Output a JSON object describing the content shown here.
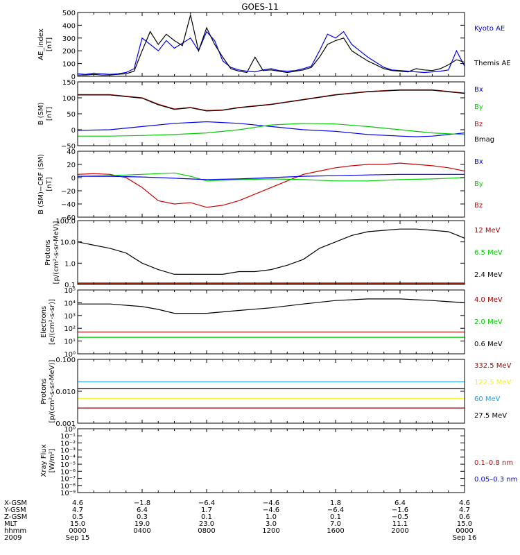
{
  "title": "GOES-11",
  "colors": {
    "black": "#000000",
    "red": "#cc0000",
    "green": "#00cc00",
    "blue": "#0000ee",
    "darkred": "#990000",
    "yellow": "#f5f500",
    "sky": "#00aaff"
  },
  "chart_data": [
    {
      "id": "ae",
      "type": "line",
      "ylabel": [
        "AE_index",
        "[nT]"
      ],
      "yscale": "linear",
      "ylim": [
        0,
        500
      ],
      "yticks": [
        0,
        100,
        200,
        300,
        400,
        500
      ],
      "yticklabels": [
        "0",
        "100",
        "200",
        "300",
        "400",
        "500"
      ],
      "legend": [
        {
          "label": "Kyoto AE",
          "color": "#0000ee"
        },
        {
          "label": "Themis AE",
          "color": "#000000"
        }
      ],
      "series": [
        {
          "name": "Kyoto AE",
          "color": "#0000ee",
          "x": [
            0,
            0.5,
            1,
            1.5,
            2,
            2.5,
            3,
            3.5,
            4,
            4.5,
            5,
            5.5,
            6,
            6.5,
            7,
            7.5,
            8,
            8.5,
            9,
            9.5,
            10,
            10.5,
            11,
            11.5,
            12,
            12.5,
            13,
            13.5,
            14,
            14.5,
            15,
            15.5,
            16,
            16.5,
            17,
            17.5,
            18,
            18.5,
            19,
            19.5,
            20,
            20.5,
            21,
            21.5,
            22,
            22.5,
            23,
            23.5,
            24
          ],
          "y": [
            20,
            15,
            25,
            20,
            15,
            20,
            30,
            60,
            300,
            250,
            200,
            280,
            220,
            260,
            300,
            200,
            350,
            280,
            120,
            70,
            50,
            40,
            35,
            50,
            60,
            45,
            40,
            45,
            60,
            80,
            200,
            330,
            300,
            350,
            250,
            200,
            150,
            110,
            70,
            50,
            45,
            40,
            35,
            30,
            35,
            40,
            50,
            200,
            80
          ]
        },
        {
          "name": "Themis AE",
          "color": "#000000",
          "x": [
            0,
            0.5,
            1,
            1.5,
            2,
            2.5,
            3,
            3.5,
            4,
            4.5,
            5,
            5.5,
            6,
            6.5,
            7,
            7.5,
            8,
            8.5,
            9,
            9.5,
            10,
            10.5,
            11,
            11.5,
            12,
            12.5,
            13,
            13.5,
            14,
            14.5,
            15,
            15.5,
            16,
            16.5,
            17,
            17.5,
            18,
            18.5,
            19,
            19.5,
            20,
            20.5,
            21,
            21.5,
            22,
            22.5,
            23,
            23.5,
            24
          ],
          "y": [
            10,
            10,
            15,
            10,
            10,
            15,
            20,
            40,
            200,
            350,
            250,
            330,
            280,
            240,
            480,
            200,
            380,
            250,
            150,
            60,
            40,
            30,
            150,
            45,
            50,
            40,
            30,
            40,
            50,
            70,
            150,
            250,
            280,
            300,
            200,
            160,
            120,
            90,
            60,
            45,
            40,
            35,
            60,
            50,
            45,
            60,
            90,
            130,
            110
          ]
        }
      ]
    },
    {
      "id": "b",
      "type": "line",
      "ylabel": [
        "B (SM)",
        "[nT]"
      ],
      "yscale": "linear",
      "ylim": [
        -50,
        150
      ],
      "yticks": [
        -50,
        0,
        50,
        100,
        150
      ],
      "yticklabels": [
        "−50",
        "0",
        "50",
        "100",
        "150"
      ],
      "legend": [
        {
          "label": "Bx",
          "color": "#0000ee"
        },
        {
          "label": "By",
          "color": "#00cc00"
        },
        {
          "label": "Bz",
          "color": "#cc0000"
        },
        {
          "label": "Bmag",
          "color": "#000000"
        }
      ],
      "series": [
        {
          "name": "Bz",
          "color": "#cc0000",
          "x": [
            0,
            2,
            4,
            5,
            6,
            7,
            8,
            9,
            10,
            12,
            14,
            16,
            18,
            20,
            22,
            24
          ],
          "y": [
            110,
            110,
            100,
            80,
            65,
            70,
            60,
            62,
            70,
            80,
            95,
            110,
            120,
            125,
            125,
            115
          ]
        },
        {
          "name": "Bmag",
          "color": "#000000",
          "x": [
            0,
            2,
            4,
            5,
            6,
            7,
            8,
            9,
            10,
            12,
            14,
            16,
            18,
            20,
            22,
            24
          ],
          "y": [
            109,
            109,
            99,
            78,
            64,
            69,
            59,
            61,
            69,
            79,
            94,
            109,
            119,
            124,
            124,
            114
          ]
        },
        {
          "name": "Bx",
          "color": "#0000ee",
          "x": [
            0,
            2,
            4,
            6,
            8,
            10,
            12,
            14,
            16,
            18,
            20,
            21,
            22,
            24
          ],
          "y": [
            -2,
            0,
            10,
            20,
            25,
            20,
            10,
            0,
            -5,
            -15,
            -20,
            -22,
            -20,
            -10
          ]
        },
        {
          "name": "By",
          "color": "#00cc00",
          "x": [
            0,
            2,
            4,
            6,
            8,
            10,
            12,
            14,
            16,
            18,
            20,
            22,
            24
          ],
          "y": [
            -20,
            -20,
            -18,
            -15,
            -10,
            0,
            15,
            20,
            18,
            10,
            0,
            -10,
            -15
          ]
        }
      ]
    },
    {
      "id": "bsub",
      "type": "line",
      "ylabel": [
        "B (SM)−CRF (SM)",
        "[nT]"
      ],
      "yscale": "linear",
      "ylim": [
        -60,
        40
      ],
      "yticks": [
        -60,
        -40,
        -20,
        0,
        20,
        40
      ],
      "yticklabels": [
        "−60",
        "−40",
        "−20",
        "0",
        "20",
        "40"
      ],
      "legend": [
        {
          "label": "Bx",
          "color": "#0000ee"
        },
        {
          "label": "By",
          "color": "#00cc00"
        },
        {
          "label": "Bz",
          "color": "#cc0000"
        }
      ],
      "series": [
        {
          "name": "Bz",
          "color": "#cc0000",
          "x": [
            0,
            1,
            2,
            3,
            4,
            5,
            6,
            7,
            8,
            9,
            10,
            11,
            12,
            13,
            14,
            15,
            16,
            17,
            18,
            19,
            20,
            21,
            22,
            23,
            24
          ],
          "y": [
            5,
            6,
            5,
            0,
            -15,
            -35,
            -40,
            -38,
            -45,
            -42,
            -35,
            -25,
            -15,
            -5,
            5,
            10,
            15,
            18,
            20,
            20,
            22,
            20,
            18,
            15,
            10
          ]
        },
        {
          "name": "By",
          "color": "#00cc00",
          "x": [
            0,
            2,
            4,
            6,
            7,
            8,
            10,
            12,
            14,
            16,
            18,
            20,
            22,
            24
          ],
          "y": [
            2,
            3,
            5,
            7,
            2,
            -5,
            -3,
            -2,
            -3,
            -5,
            -5,
            -3,
            -2,
            0
          ]
        },
        {
          "name": "Bx",
          "color": "#0000ee",
          "x": [
            0,
            2,
            4,
            6,
            8,
            10,
            12,
            14,
            16,
            18,
            20,
            22,
            24
          ],
          "y": [
            2,
            2,
            1,
            -1,
            -3,
            -2,
            0,
            2,
            3,
            4,
            5,
            5,
            5
          ]
        }
      ]
    },
    {
      "id": "protons_low",
      "type": "line",
      "ylabel": [
        "Protons",
        "[p/(cm²-s-sr-MeV)]"
      ],
      "yscale": "log",
      "ylim": [
        0.1,
        100
      ],
      "yticks": [
        0.1,
        1,
        10,
        100
      ],
      "yticklabels": [
        "0.1",
        "1.0",
        "10.0",
        "100.0"
      ],
      "legend": [
        {
          "label": "12 MeV",
          "color": "#990000"
        },
        {
          "label": "6.5 MeV",
          "color": "#00cc00"
        },
        {
          "label": "2.4 MeV",
          "color": "#000000"
        }
      ],
      "series": [
        {
          "name": "2.4 MeV",
          "color": "#000000",
          "x": [
            0,
            1,
            2,
            3,
            4,
            5,
            6,
            7,
            8,
            9,
            10,
            11,
            12,
            13,
            14,
            15,
            16,
            17,
            18,
            19,
            20,
            21,
            22,
            23,
            24
          ],
          "y": [
            10,
            7,
            5,
            3,
            1,
            0.5,
            0.3,
            0.3,
            0.3,
            0.3,
            0.4,
            0.4,
            0.5,
            0.8,
            1.5,
            5,
            10,
            20,
            30,
            35,
            40,
            40,
            35,
            30,
            15
          ]
        },
        {
          "name": "6.5 MeV",
          "color": "#00cc00",
          "x": [
            0,
            6,
            12,
            18,
            24
          ],
          "y": [
            0.12,
            0.12,
            0.12,
            0.12,
            0.12
          ]
        },
        {
          "name": "12 MeV",
          "color": "#990000",
          "x": [
            0,
            6,
            12,
            18,
            24
          ],
          "y": [
            0.11,
            0.11,
            0.11,
            0.11,
            0.11
          ]
        }
      ]
    },
    {
      "id": "electrons",
      "type": "line",
      "ylabel": [
        "Electrons",
        "[e/(cm²-s-sr)]"
      ],
      "yscale": "log",
      "ylim": [
        1,
        100000
      ],
      "yticks": [
        1,
        10,
        100,
        1000,
        10000,
        100000
      ],
      "yticklabels": [
        "10⁰",
        "10¹",
        "10²",
        "10³",
        "10⁴",
        "10⁵"
      ],
      "legend": [
        {
          "label": "4.0 MeV",
          "color": "#990000"
        },
        {
          "label": "2.0 MeV",
          "color": "#00cc00"
        },
        {
          "label": "0.6 MeV",
          "color": "#000000"
        }
      ],
      "series": [
        {
          "name": "0.6 MeV",
          "color": "#000000",
          "x": [
            0,
            2,
            4,
            5,
            6,
            8,
            10,
            12,
            14,
            16,
            18,
            20,
            22,
            24
          ],
          "y": [
            8000,
            8000,
            5000,
            3000,
            1500,
            1500,
            2500,
            4000,
            8000,
            15000,
            20000,
            20000,
            15000,
            10000
          ]
        },
        {
          "name": "4.0 MeV",
          "color": "#990000",
          "x": [
            0,
            6,
            12,
            18,
            24
          ],
          "y": [
            50,
            50,
            50,
            50,
            50
          ]
        },
        {
          "name": "2.0 MeV",
          "color": "#00cc00",
          "x": [
            0,
            6,
            12,
            18,
            24
          ],
          "y": [
            20,
            20,
            20,
            20,
            20
          ]
        }
      ]
    },
    {
      "id": "protons_high",
      "type": "line",
      "ylabel": [
        "Protons",
        "[p/(cm²-s-sr-MeV)]"
      ],
      "yscale": "log",
      "ylim": [
        0.001,
        0.1
      ],
      "yticks": [
        0.001,
        0.01,
        0.1
      ],
      "yticklabels": [
        "0.001",
        "0.010",
        "0.100"
      ],
      "legend": [
        {
          "label": "332.5 MeV",
          "color": "#990000"
        },
        {
          "label": "122.5 MeV",
          "color": "#f5f500"
        },
        {
          "label": "60 MeV",
          "color": "#00aaff"
        },
        {
          "label": "27.5 MeV",
          "color": "#000000"
        }
      ],
      "series": [
        {
          "name": "27.5 MeV",
          "color": "#000000",
          "x": [
            0,
            6,
            12,
            18,
            24
          ],
          "y": [
            0.012,
            0.012,
            0.012,
            0.012,
            0.012
          ]
        },
        {
          "name": "60 MeV",
          "color": "#00aaff",
          "x": [
            0,
            6,
            12,
            18,
            24
          ],
          "y": [
            0.02,
            0.02,
            0.02,
            0.02,
            0.02
          ]
        },
        {
          "name": "122.5 MeV",
          "color": "#f5f500",
          "x": [
            0,
            6,
            12,
            18,
            24
          ],
          "y": [
            0.006,
            0.006,
            0.006,
            0.006,
            0.006
          ]
        },
        {
          "name": "332.5 MeV",
          "color": "#990000",
          "x": [
            0,
            6,
            12,
            18,
            24
          ],
          "y": [
            0.003,
            0.003,
            0.003,
            0.003,
            0.003
          ]
        }
      ]
    },
    {
      "id": "xray",
      "type": "line",
      "ylabel": [
        "Xray Flux",
        "[W/m²]"
      ],
      "yscale": "log",
      "ylim": [
        1e-09,
        1
      ],
      "yticks": [
        1e-09,
        1e-08,
        1e-07,
        1e-06,
        1e-05,
        0.0001,
        0.001,
        0.01,
        0.1,
        1
      ],
      "yticklabels": [
        "10⁻⁹",
        "10⁻⁸",
        "10⁻⁷",
        "10⁻⁶",
        "10⁻⁵",
        "10⁻⁴",
        "10⁻³",
        "10⁻²",
        "10⁻¹",
        "10⁰"
      ],
      "legend": [
        {
          "label": "0.1–0.8 nm",
          "color": "#cc0000"
        },
        {
          "label": "0.05–0.3 nm",
          "color": "#0000ee"
        }
      ],
      "series": []
    }
  ],
  "ephemeris": {
    "rows": [
      {
        "label": "X-GSM",
        "values": [
          "4.6",
          "−1.8",
          "−6.4",
          "−4.6",
          "1.8",
          "6.4",
          "4.6"
        ]
      },
      {
        "label": "Y-GSM",
        "values": [
          "4.7",
          "6.4",
          "1.7",
          "−4.6",
          "−6.4",
          "−1.6",
          "4.7"
        ]
      },
      {
        "label": "Z-GSM",
        "values": [
          "0.5",
          "0.3",
          "0.1",
          "1.0",
          "0.1",
          "−0.5",
          "0.6"
        ]
      },
      {
        "label": "MLT",
        "values": [
          "15.0",
          "19.0",
          "23.0",
          "3.0",
          "7.0",
          "11.1",
          "15.0"
        ]
      },
      {
        "label": "hhmm",
        "values": [
          "0000",
          "0400",
          "0800",
          "1200",
          "1600",
          "2000",
          "0000"
        ]
      },
      {
        "label": "2009",
        "values": [
          "Sep 15",
          "",
          "",
          "",
          "",
          "",
          "Sep 16"
        ]
      }
    ]
  }
}
